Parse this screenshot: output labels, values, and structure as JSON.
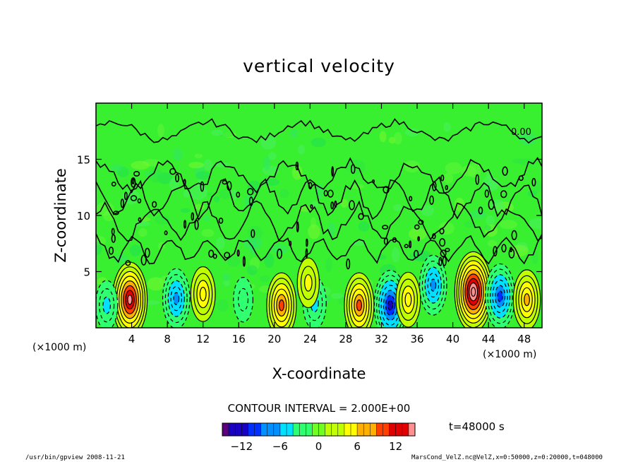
{
  "chart_data": {
    "type": "heatmap",
    "title": "vertical velocity",
    "xlabel": "X-coordinate",
    "ylabel": "Z-coordinate",
    "x_unit": "(×1000 m)",
    "y_unit": "(×1000 m)",
    "xlim": [
      0,
      50
    ],
    "ylim": [
      0,
      20
    ],
    "xticks": [
      4,
      8,
      12,
      16,
      20,
      24,
      28,
      32,
      36,
      40,
      44,
      48
    ],
    "yticks": [
      5,
      10,
      15
    ],
    "contour_interval_text": "CONTOUR INTERVAL = 2.000E+00",
    "contour_label": "0.00",
    "time_text": "t=48000 s",
    "colorbar": {
      "min": -15,
      "max": 15,
      "ticks": [
        -12,
        -6,
        0,
        6,
        12
      ],
      "colors": [
        "#5a007a",
        "#1a00c0",
        "#0030ff",
        "#0090ff",
        "#00e0ff",
        "#30ff70",
        "#70ff20",
        "#c0ff00",
        "#ffff00",
        "#ffb000",
        "#ff4000",
        "#e00000",
        "#ff9090"
      ]
    },
    "cells": [
      {
        "x": 3.8,
        "z": 2.5,
        "w": 14
      },
      {
        "x": 9.0,
        "z": 2.6,
        "w": -8
      },
      {
        "x": 12.0,
        "z": 3.0,
        "w": 6
      },
      {
        "x": 1.2,
        "z": 2.0,
        "w": -4
      },
      {
        "x": 16.5,
        "z": 2.5,
        "w": -2
      },
      {
        "x": 20.8,
        "z": 2.0,
        "w": 10
      },
      {
        "x": 24.5,
        "z": 2.2,
        "w": -5
      },
      {
        "x": 23.8,
        "z": 4.0,
        "w": 4
      },
      {
        "x": 29.5,
        "z": 2.0,
        "w": 10
      },
      {
        "x": 33.0,
        "z": 2.0,
        "w": -12
      },
      {
        "x": 35.0,
        "z": 2.5,
        "w": 6
      },
      {
        "x": 37.8,
        "z": 3.8,
        "w": -8
      },
      {
        "x": 42.3,
        "z": 3.2,
        "w": 16
      },
      {
        "x": 45.3,
        "z": 2.8,
        "w": -10
      },
      {
        "x": 48.3,
        "z": 2.5,
        "w": 8
      }
    ]
  },
  "footer": {
    "left": "/usr/bin/gpview   2008-11-21",
    "right": "MarsCond_VelZ.nc@VelZ,x=0:50000,z=0:20000,t=048000"
  }
}
